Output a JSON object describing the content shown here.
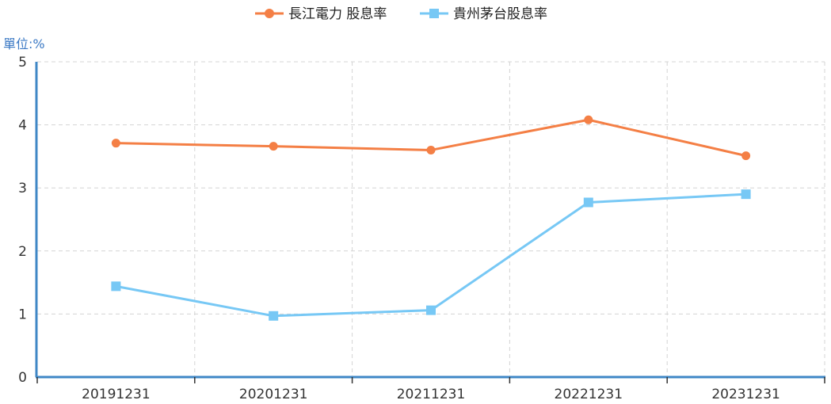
{
  "legend": {
    "items": [
      {
        "label": "長江電力 股息率"
      },
      {
        "label": "貴州茅台股息率"
      }
    ]
  },
  "unit_label": "單位:%",
  "chart_data": {
    "type": "line",
    "title": "",
    "xlabel": "",
    "ylabel": "單位:%",
    "categories": [
      "20191231",
      "20201231",
      "20211231",
      "20221231",
      "20231231"
    ],
    "ylim": [
      0,
      5
    ],
    "yticks": [
      0,
      1,
      2,
      3,
      4,
      5
    ],
    "grid": true,
    "legend_position": "top-center",
    "series": [
      {
        "name": "長江電力 股息率",
        "color": "#f47f45",
        "marker": "circle",
        "values": [
          3.71,
          3.66,
          3.6,
          4.08,
          3.51
        ]
      },
      {
        "name": "貴州茅台股息率",
        "color": "#77c8f5",
        "marker": "square",
        "values": [
          1.44,
          0.97,
          1.06,
          2.77,
          2.9
        ]
      }
    ]
  }
}
